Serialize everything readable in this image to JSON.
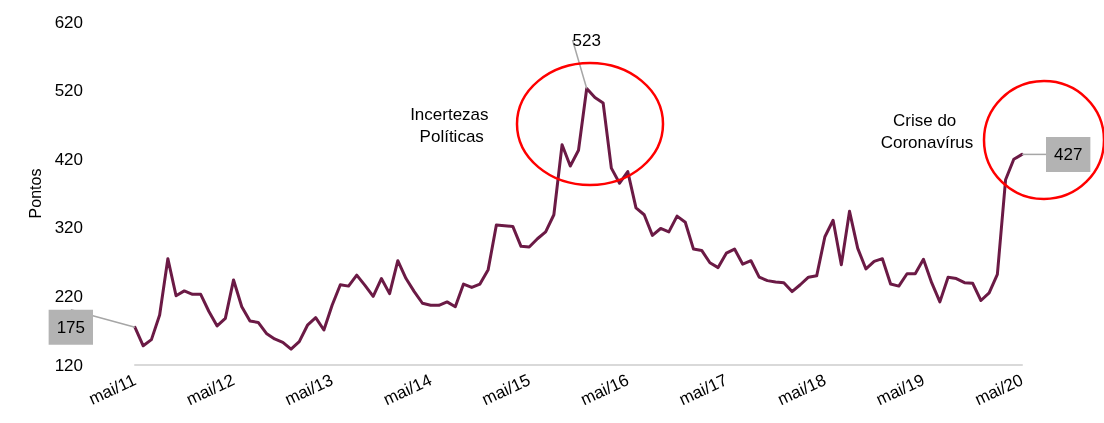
{
  "chart_data": {
    "type": "line",
    "ylabel": "Pontos",
    "categories": [
      "mai/11",
      null,
      null,
      null,
      null,
      null,
      null,
      null,
      null,
      null,
      null,
      null,
      "mai/12",
      null,
      null,
      null,
      null,
      null,
      null,
      null,
      null,
      null,
      null,
      null,
      "mai/13",
      null,
      null,
      null,
      null,
      null,
      null,
      null,
      null,
      null,
      null,
      null,
      "mai/14",
      null,
      null,
      null,
      null,
      null,
      null,
      null,
      null,
      null,
      null,
      null,
      "mai/15",
      null,
      null,
      null,
      null,
      null,
      null,
      null,
      null,
      null,
      null,
      null,
      "mai/16",
      null,
      null,
      null,
      null,
      null,
      null,
      null,
      null,
      null,
      null,
      null,
      "mai/17",
      null,
      null,
      null,
      null,
      null,
      null,
      null,
      null,
      null,
      null,
      null,
      "mai/18",
      null,
      null,
      null,
      null,
      null,
      null,
      null,
      null,
      null,
      null,
      null,
      "mai/19",
      null,
      null,
      null,
      null,
      null,
      null,
      null,
      null,
      null,
      null,
      null,
      "mai/20"
    ],
    "series": [
      {
        "color": "#6b1a45",
        "values": [
          175,
          148,
          157,
          193,
          275,
          221,
          228,
          223,
          223,
          198,
          177,
          188,
          244,
          205,
          184,
          182,
          166,
          158,
          153,
          143,
          154,
          178,
          189,
          171,
          207,
          237,
          235,
          251,
          236,
          220,
          246,
          224,
          272,
          246,
          227,
          210,
          207,
          207,
          212,
          205,
          238,
          233,
          238,
          259,
          324,
          323,
          322,
          293,
          292,
          304,
          314,
          339,
          441,
          410,
          433,
          523,
          510,
          502,
          407,
          385,
          402,
          349,
          339,
          309,
          319,
          314,
          337,
          328,
          289,
          287,
          269,
          262,
          283,
          289,
          267,
          272,
          248,
          243,
          241,
          240,
          227,
          237,
          248,
          250,
          307,
          331,
          266,
          344,
          290,
          260,
          271,
          275,
          238,
          235,
          253,
          253,
          274,
          240,
          212,
          248,
          246,
          240,
          239,
          214,
          225,
          252,
          390,
          420,
          427
        ],
        "value_labels": [
          "175",
          null,
          null,
          null,
          null,
          null,
          null,
          null,
          null,
          null,
          null,
          null,
          null,
          null,
          null,
          null,
          null,
          null,
          null,
          null,
          null,
          null,
          null,
          null,
          null,
          null,
          null,
          null,
          null,
          null,
          null,
          null,
          null,
          null,
          null,
          null,
          null,
          null,
          null,
          null,
          null,
          null,
          null,
          null,
          null,
          null,
          null,
          null,
          null,
          null,
          null,
          null,
          null,
          null,
          null,
          "523",
          null,
          null,
          null,
          null,
          null,
          null,
          null,
          null,
          null,
          null,
          null,
          null,
          null,
          null,
          null,
          null,
          null,
          null,
          null,
          null,
          null,
          null,
          null,
          null,
          null,
          null,
          null,
          null,
          null,
          null,
          null,
          null,
          null,
          null,
          null,
          null,
          null,
          null,
          null,
          null,
          null,
          null,
          null,
          null,
          null,
          null,
          null,
          null,
          null,
          null,
          null,
          null,
          "427"
        ]
      }
    ],
    "ylim": [
      120,
      620
    ],
    "yticks": [
      120,
      220,
      320,
      420,
      520,
      620
    ],
    "grid": false,
    "marker": "none",
    "line_style": "solid",
    "annotations": [
      "Incertezas Políticas",
      "Crise do Coronavírus"
    ]
  }
}
